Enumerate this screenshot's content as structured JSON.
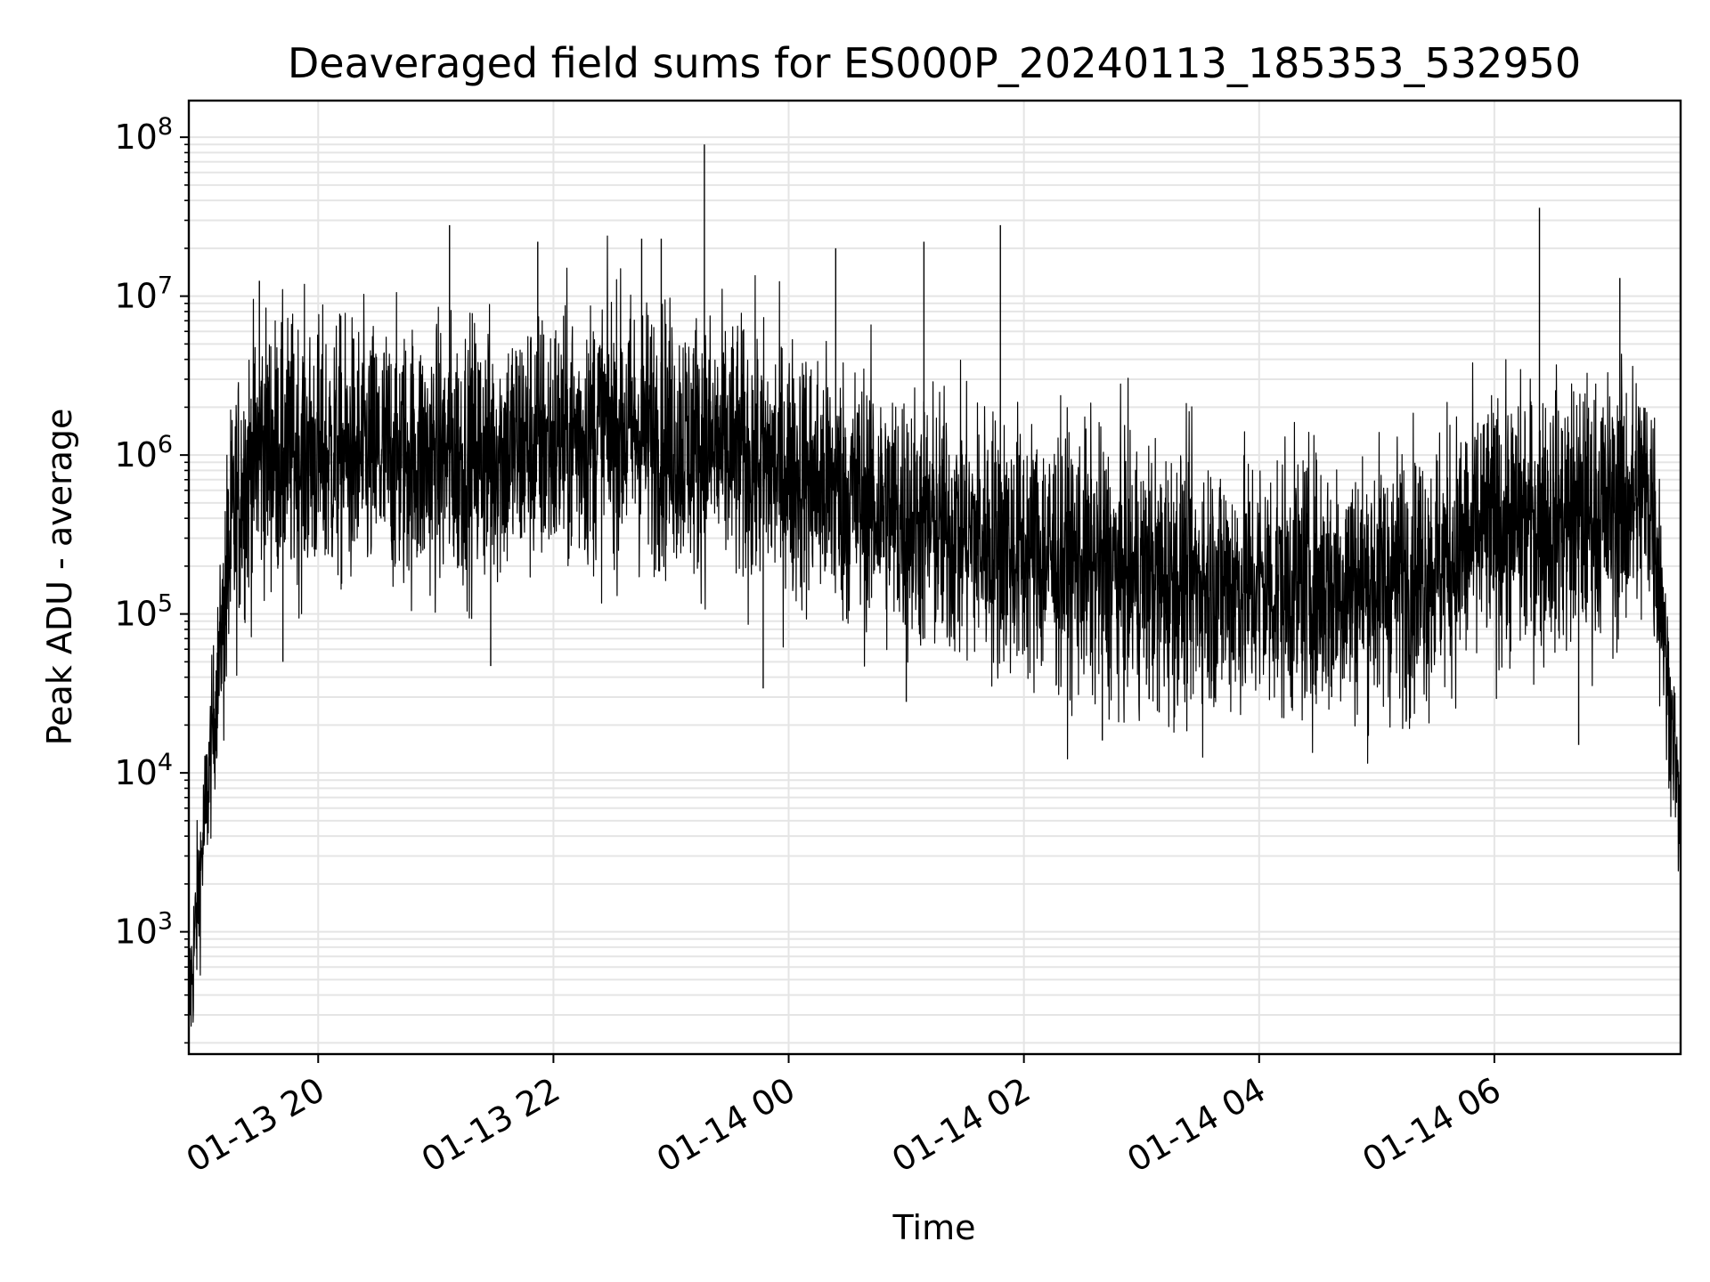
{
  "chart_data": {
    "type": "line",
    "title": "Deaveraged field sums for ES000P_20240113_185353_532950",
    "xlabel": "Time",
    "ylabel": "Peak ADU - average",
    "yscale": "log",
    "ylim": [
      170,
      170000000
    ],
    "xlim": [
      "2024-01-13 18:54",
      "2024-01-14 07:35"
    ],
    "grid": true,
    "line_color": "#000000",
    "grid_color": "#e5e5e5",
    "x_ticks": [
      {
        "value": "2024-01-13 20:00",
        "label": "01-13 20"
      },
      {
        "value": "2024-01-13 22:00",
        "label": "01-13 22"
      },
      {
        "value": "2024-01-14 00:00",
        "label": "01-14 00"
      },
      {
        "value": "2024-01-14 02:00",
        "label": "01-14 02"
      },
      {
        "value": "2024-01-14 04:00",
        "label": "01-14 04"
      },
      {
        "value": "2024-01-14 06:00",
        "label": "01-14 06"
      }
    ],
    "y_ticks": [
      {
        "value": 1000,
        "base": "10",
        "exp": "3"
      },
      {
        "value": 10000,
        "base": "10",
        "exp": "4"
      },
      {
        "value": 100000,
        "base": "10",
        "exp": "5"
      },
      {
        "value": 1000000,
        "base": "10",
        "exp": "6"
      },
      {
        "value": 10000000,
        "base": "10",
        "exp": "7"
      },
      {
        "value": 100000000,
        "base": "10",
        "exp": "8"
      }
    ],
    "series": [
      {
        "points": [
          [
            "2024-01-13 18:54",
            320
          ],
          [
            "2024-01-13 19:00",
            2500
          ],
          [
            "2024-01-13 19:05",
            12000
          ],
          [
            "2024-01-13 19:10",
            60000
          ],
          [
            "2024-01-13 19:15",
            250000
          ],
          [
            "2024-01-13 19:20",
            600000
          ],
          [
            "2024-01-13 19:30",
            1100000
          ],
          [
            "2024-01-13 20:00",
            1000000
          ],
          [
            "2024-01-13 21:00",
            950000
          ],
          [
            "2024-01-13 22:00",
            1200000
          ],
          [
            "2024-01-13 22:30",
            1500000
          ],
          [
            "2024-01-13 23:00",
            1300000
          ],
          [
            "2024-01-14 00:00",
            800000
          ],
          [
            "2024-01-14 01:00",
            400000
          ],
          [
            "2024-01-14 02:00",
            250000
          ],
          [
            "2024-01-14 03:00",
            170000
          ],
          [
            "2024-01-14 04:00",
            150000
          ],
          [
            "2024-01-14 05:00",
            160000
          ],
          [
            "2024-01-14 05:30",
            200000
          ],
          [
            "2024-01-14 06:00",
            350000
          ],
          [
            "2024-01-14 07:00",
            450000
          ],
          [
            "2024-01-14 07:20",
            600000
          ],
          [
            "2024-01-14 07:25",
            150000
          ],
          [
            "2024-01-14 07:28",
            40000
          ],
          [
            "2024-01-14 07:32",
            15000
          ],
          [
            "2024-01-14 07:35",
            3000
          ]
        ],
        "spikes": [
          [
            "2024-01-13 19:30",
            12500000
          ],
          [
            "2024-01-13 19:42",
            50000
          ],
          [
            "2024-01-13 21:07",
            28000000
          ],
          [
            "2024-01-13 21:28",
            47000
          ],
          [
            "2024-01-13 21:52",
            22000000
          ],
          [
            "2024-01-13 22:45",
            23000000
          ],
          [
            "2024-01-13 22:55",
            23000000
          ],
          [
            "2024-01-13 23:17",
            90000000
          ],
          [
            "2024-01-13 23:47",
            34000
          ],
          [
            "2024-01-14 00:24",
            20000000
          ],
          [
            "2024-01-14 01:00",
            28000
          ],
          [
            "2024-01-14 01:09",
            22000000
          ],
          [
            "2024-01-14 01:48",
            28000000
          ],
          [
            "2024-01-14 02:40",
            16000
          ],
          [
            "2024-01-14 03:09",
            24000
          ],
          [
            "2024-01-14 04:37",
            30000
          ],
          [
            "2024-01-14 05:15",
            21000
          ],
          [
            "2024-01-14 06:23",
            36000000
          ],
          [
            "2024-01-14 06:43",
            15000
          ],
          [
            "2024-01-14 07:04",
            13000000
          ]
        ]
      }
    ]
  }
}
